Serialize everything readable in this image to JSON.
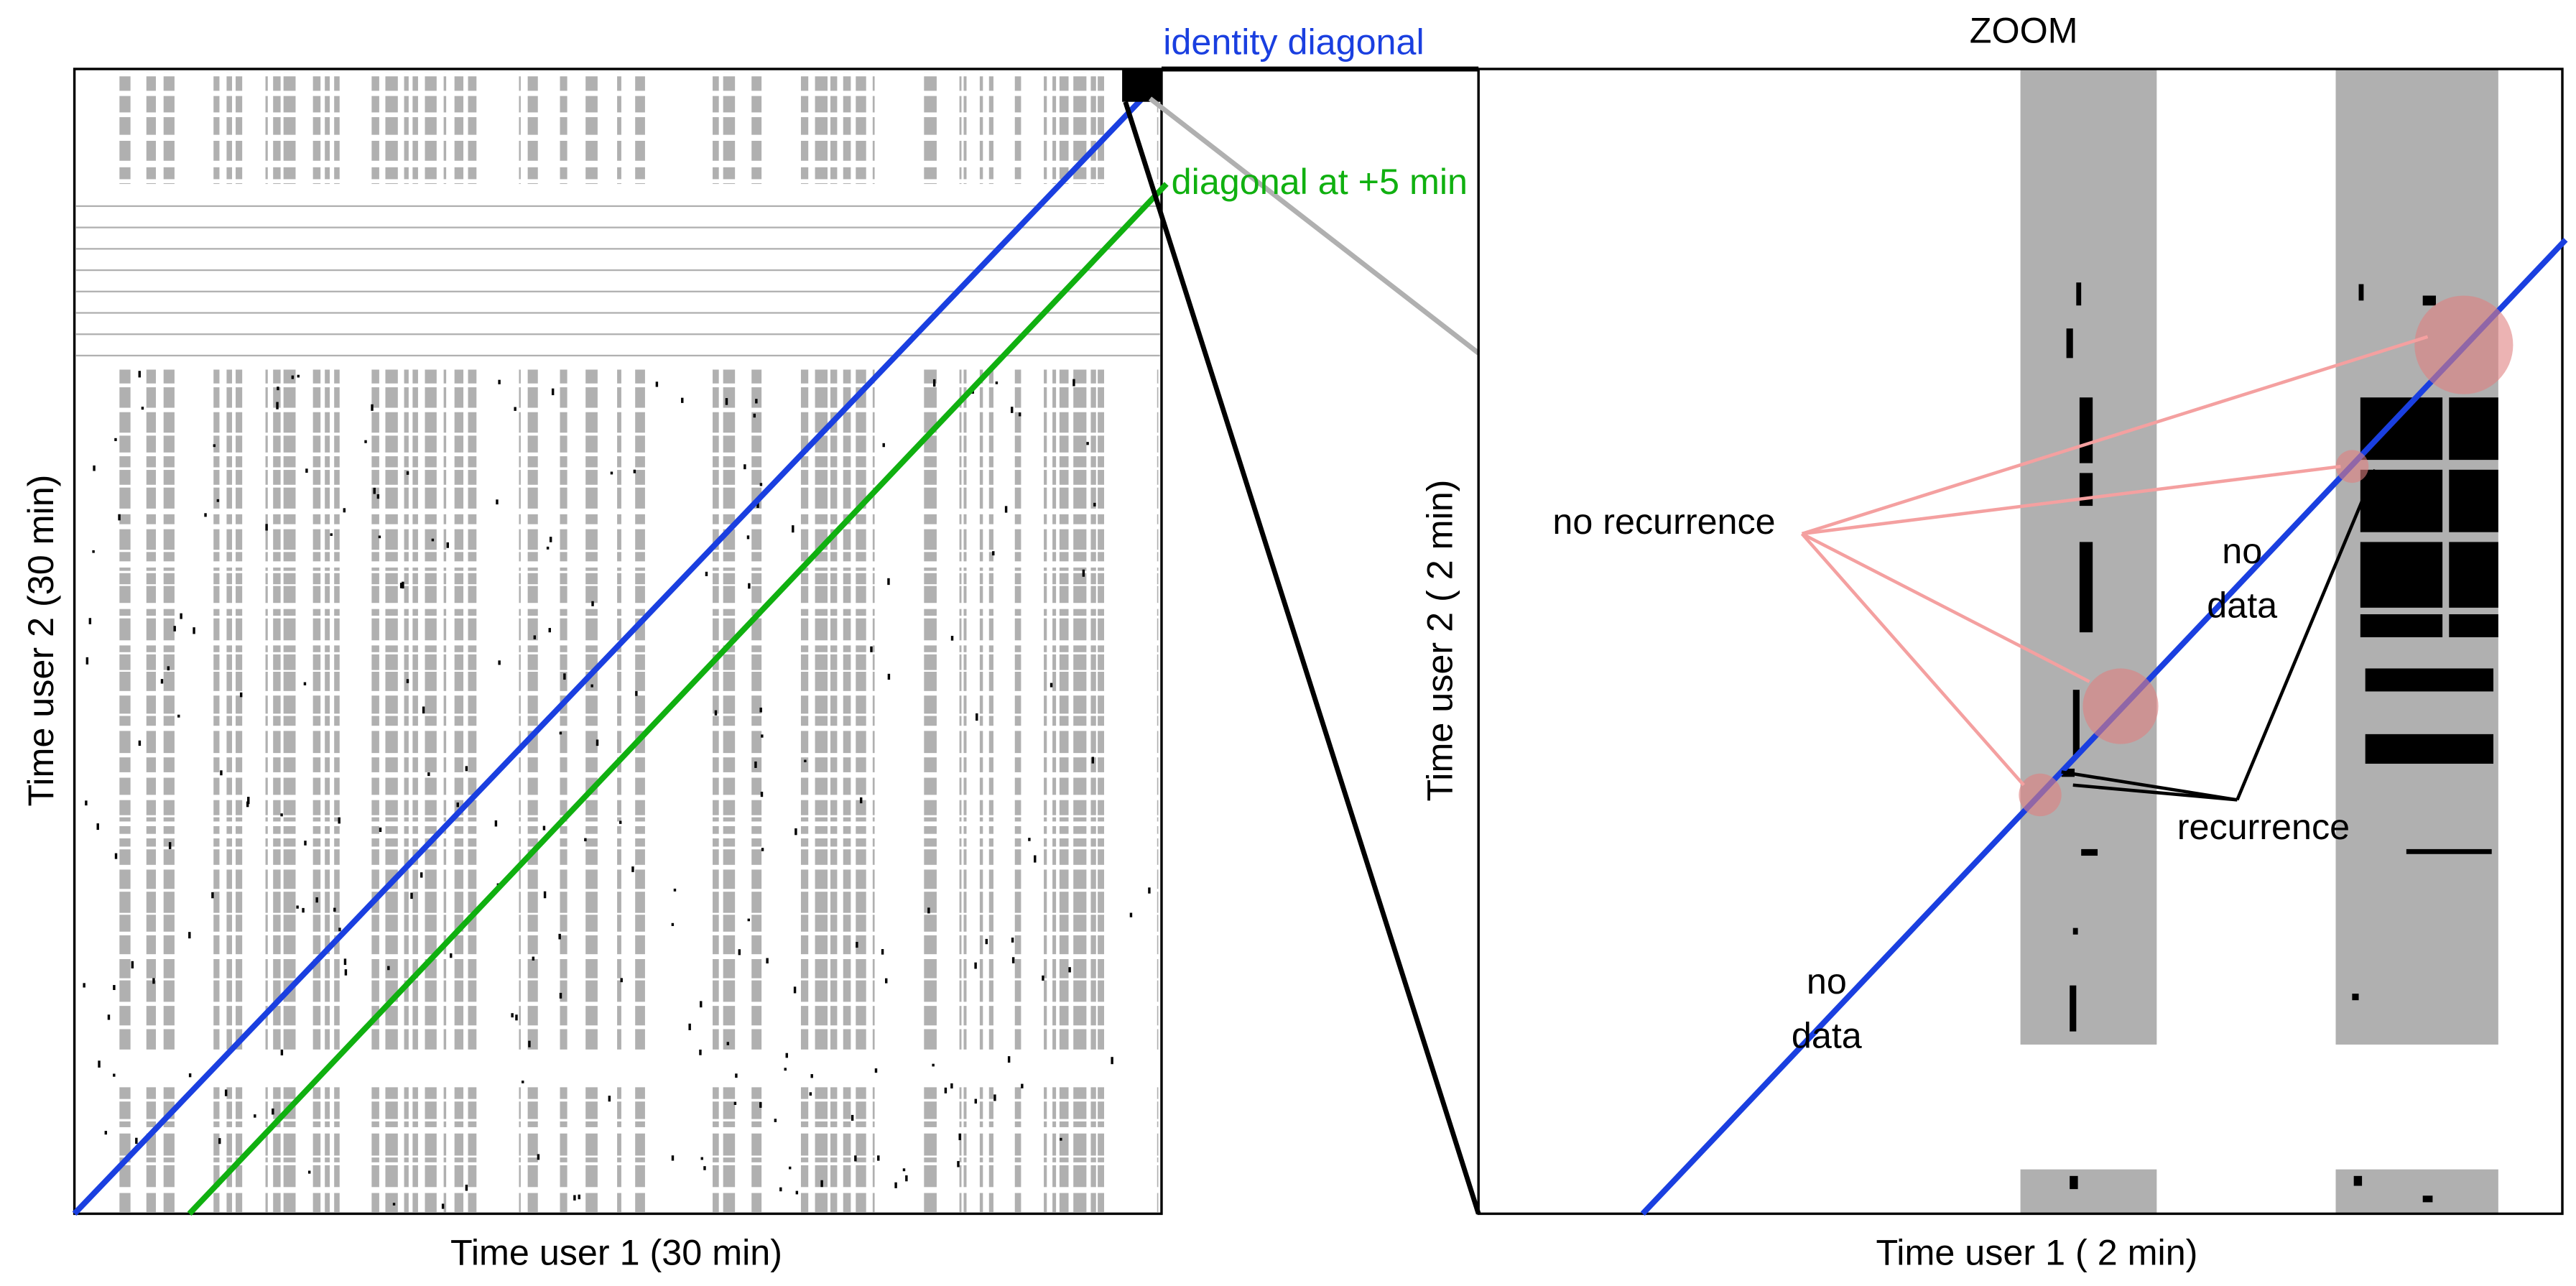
{
  "left_panel": {
    "x_label": "Time user 1 (30 min)",
    "y_label": "Time user 2 (30 min)",
    "annotations": [
      "identity diagonal",
      "diagonal at +5 min"
    ]
  },
  "zoom": {
    "title": "ZOOM",
    "x_label": "Time user 1 ( 2 min)",
    "y_label": "Time user 2 ( 2 min)",
    "annotations": {
      "no_recurrence": "no recurrence",
      "recurrence": "recurrence",
      "no_data_1": [
        "no",
        "data"
      ],
      "no_data_2": [
        "no",
        "data"
      ]
    }
  }
}
